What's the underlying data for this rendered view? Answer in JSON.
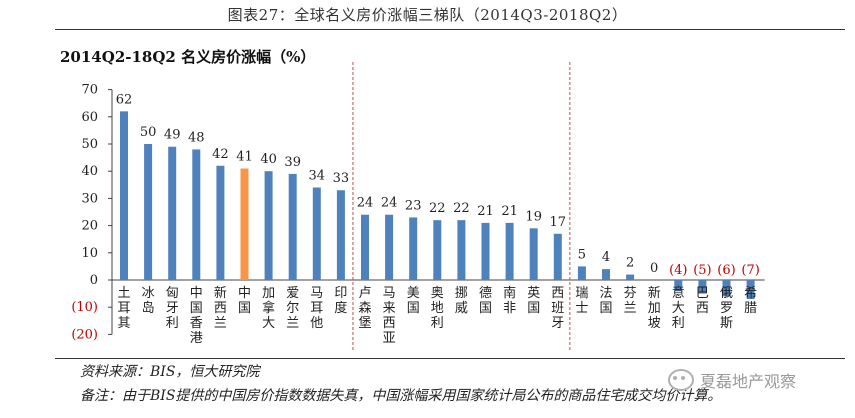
{
  "figure": {
    "title": "图表27：全球名义房价涨幅三梯队（2014Q3-2018Q2）",
    "source": "资料来源：BIS，恒大研究院",
    "note": "备注：由于BIS提供的中国房价指数数据失真，中国涨幅采用国家统计局公布的商品住宅成交均价计算。",
    "watermark": "夏磊地产观察"
  },
  "colors": {
    "bar": "#4f81bd",
    "highlight": "#f79646",
    "negative_label": "#c00000",
    "divider": "#c0504d"
  },
  "chart_data": {
    "type": "bar",
    "title": "2014Q2-18Q2 名义房价涨幅（%）",
    "xlabel": "",
    "ylabel": "",
    "ylim": [
      -20,
      70
    ],
    "yticks": [
      -20,
      -10,
      0,
      10,
      20,
      30,
      40,
      50,
      60,
      70
    ],
    "ytick_labels": [
      "(20)",
      "(10)",
      "0",
      "10",
      "20",
      "30",
      "40",
      "50",
      "60",
      "70"
    ],
    "categories": [
      "土耳其",
      "冰岛",
      "匈牙利",
      "中国香港",
      "新西兰",
      "中国",
      "加拿大",
      "爱尔兰",
      "马耳他",
      "印度",
      "卢森堡",
      "马来西亚",
      "美国",
      "奥地利",
      "挪威",
      "德国",
      "南非",
      "英国",
      "西班牙",
      "瑞士",
      "法国",
      "芬兰",
      "新加坡",
      "意大利",
      "巴西",
      "俄罗斯",
      "希腊"
    ],
    "values": [
      62,
      50,
      49,
      48,
      42,
      41,
      40,
      39,
      34,
      33,
      24,
      24,
      23,
      22,
      22,
      21,
      21,
      19,
      17,
      5,
      4,
      2,
      0,
      -4,
      -5,
      -6,
      -7
    ],
    "value_labels": [
      "62",
      "50",
      "49",
      "48",
      "42",
      "41",
      "40",
      "39",
      "34",
      "33",
      "24",
      "24",
      "23",
      "22",
      "22",
      "21",
      "21",
      "19",
      "17",
      "5",
      "4",
      "2",
      "0",
      "(4)",
      "(5)",
      "(6)",
      "(7)"
    ],
    "highlight_category": "中国",
    "group_dividers_after": [
      "印度",
      "西班牙"
    ],
    "grid": false
  }
}
